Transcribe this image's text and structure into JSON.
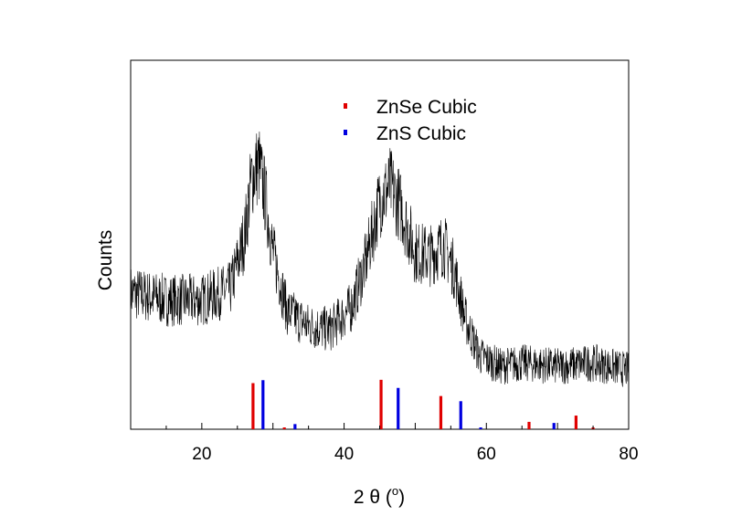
{
  "chart_data": {
    "type": "line",
    "xlabel": "2 θ (",
    "xlabel_unit_sup": "o",
    "xlabel_close": ")",
    "ylabel": "Counts",
    "xlim": [
      10,
      80
    ],
    "ylim": [
      0,
      100
    ],
    "x_ticks": [
      20,
      40,
      60,
      80
    ],
    "y_ticks_shown": false,
    "grid": false,
    "legend_position": "top-center",
    "legend": [
      {
        "name": "ZnSe Cubic",
        "color": "#e00000"
      },
      {
        "name": "ZnS Cubic",
        "color": "#0000e0"
      }
    ],
    "profile": {
      "name": "",
      "color": "#000000",
      "note_noise": true,
      "baseline": [
        [
          10,
          37
        ],
        [
          15,
          35
        ],
        [
          20,
          35
        ],
        [
          24,
          38
        ],
        [
          26,
          52
        ],
        [
          27,
          68
        ],
        [
          28,
          72
        ],
        [
          29,
          62
        ],
        [
          30,
          48
        ],
        [
          32,
          32
        ],
        [
          35,
          28
        ],
        [
          38,
          27
        ],
        [
          41,
          33
        ],
        [
          43,
          45
        ],
        [
          45,
          62
        ],
        [
          46.5,
          66
        ],
        [
          48,
          60
        ],
        [
          50,
          48
        ],
        [
          52,
          47
        ],
        [
          54,
          50
        ],
        [
          55.5,
          43
        ],
        [
          57,
          30
        ],
        [
          59,
          20
        ],
        [
          62,
          17
        ],
        [
          65,
          18
        ],
        [
          70,
          17
        ],
        [
          75,
          18
        ],
        [
          80,
          16
        ]
      ]
    },
    "series": [
      {
        "name": "ZnSe Cubic",
        "color": "#e00000",
        "x": [
          27.2,
          31.6,
          45.2,
          53.6,
          66.0,
          72.6,
          75.0
        ],
        "values": [
          12.5,
          0.4,
          13.4,
          9.0,
          2.0,
          3.7,
          0.3
        ]
      },
      {
        "name": "ZnS Cubic",
        "color": "#0000e0",
        "x": [
          28.6,
          33.1,
          47.6,
          56.4,
          59.2,
          69.5
        ],
        "values": [
          13.3,
          1.4,
          11.2,
          7.6,
          0.3,
          1.7
        ]
      }
    ]
  }
}
